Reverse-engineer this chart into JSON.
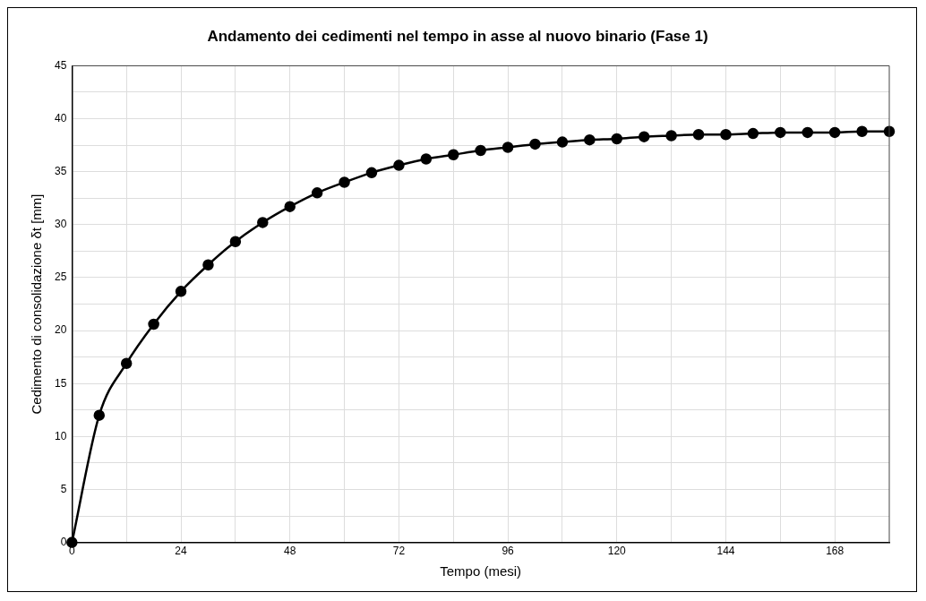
{
  "chart_data": {
    "type": "line",
    "title": "Andamento dei cedimenti nel tempo in asse al nuovo binario (Fase 1)",
    "xlabel": "Tempo (mesi)",
    "ylabel": "Cedimento di consolidazione δt [mm]",
    "x": [
      0,
      6,
      12,
      18,
      24,
      30,
      36,
      42,
      48,
      54,
      60,
      66,
      72,
      78,
      84,
      90,
      96,
      102,
      108,
      114,
      120,
      126,
      132,
      138,
      144,
      150,
      156,
      162,
      168,
      174,
      180
    ],
    "series": [
      {
        "color": "#000000",
        "values": [
          0,
          12.0,
          16.9,
          20.6,
          23.7,
          26.2,
          28.4,
          30.2,
          31.7,
          33.0,
          34.0,
          34.9,
          35.6,
          36.2,
          36.6,
          37.0,
          37.3,
          37.6,
          37.8,
          38.0,
          38.1,
          38.3,
          38.4,
          38.5,
          38.5,
          38.6,
          38.7,
          38.7,
          38.7,
          38.8,
          38.8
        ]
      }
    ],
    "xlim": [
      0,
      180
    ],
    "xticks": [
      0,
      {
        "value": 12,
        "label": null
      },
      24,
      {
        "value": 36,
        "label": null
      },
      48,
      {
        "value": 60,
        "label": null
      },
      72,
      {
        "value": 84,
        "label": null
      },
      96,
      {
        "value": 108,
        "label": null
      },
      120,
      {
        "value": 132,
        "label": null
      },
      144,
      {
        "value": 156,
        "label": null
      },
      168
    ],
    "ylim": [
      0,
      45
    ],
    "yticks": [
      0,
      {
        "value": 2.5,
        "label": null
      },
      5,
      {
        "value": 7.5,
        "label": null
      },
      10,
      {
        "value": 12.5,
        "label": null
      },
      15,
      {
        "value": 17.5,
        "label": null
      },
      20,
      {
        "value": 22.5,
        "label": null
      },
      25,
      {
        "value": 27.5,
        "label": null
      },
      30,
      {
        "value": 32.5,
        "label": null
      },
      35,
      {
        "value": 37.5,
        "label": null
      },
      40,
      {
        "value": 42.5,
        "label": null
      },
      45
    ],
    "grid": true,
    "legend": false,
    "marker": "circle",
    "line_style": "solid"
  }
}
